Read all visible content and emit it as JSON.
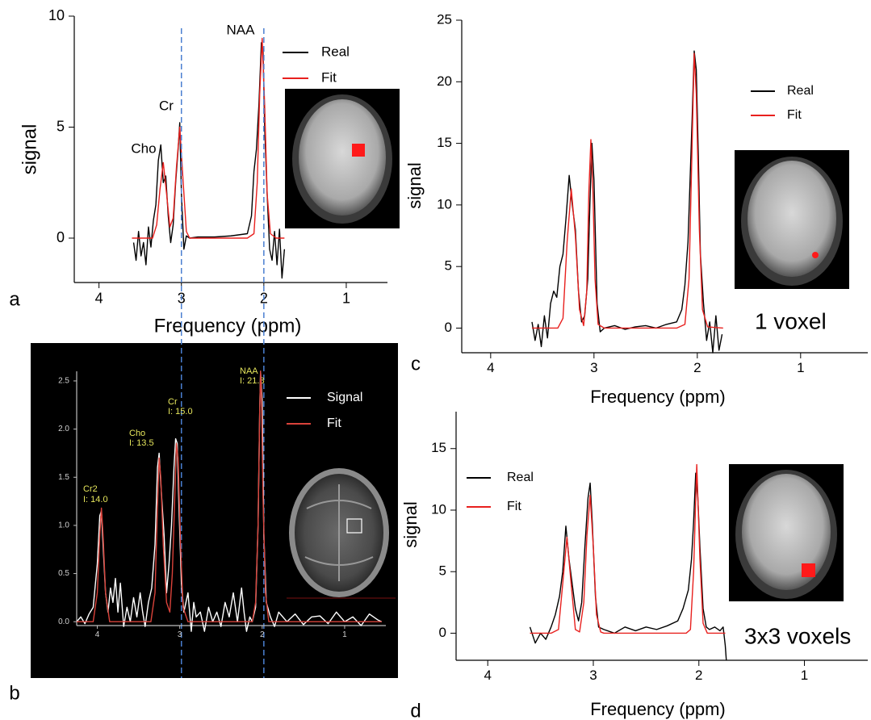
{
  "chart_data": [
    {
      "type": "line",
      "panel_label": "a",
      "xlabel": "Frequency (ppm)",
      "ylabel": "signal",
      "xlim": [
        4.3,
        0.5
      ],
      "ylim": [
        -2,
        10
      ],
      "xticks": [
        4,
        3,
        2,
        1
      ],
      "yticks": [
        0,
        5,
        10
      ],
      "vlines": [
        3,
        2
      ],
      "annotations": [
        "Cho",
        "Cr",
        "NAA"
      ],
      "series": [
        {
          "name": "Real",
          "color": "#000000",
          "x": [
            3.58,
            3.55,
            3.52,
            3.49,
            3.46,
            3.43,
            3.4,
            3.37,
            3.34,
            3.31,
            3.28,
            3.25,
            3.22,
            3.19,
            3.16,
            3.13,
            3.1,
            3.07,
            3.04,
            3.02,
            3.0,
            2.97,
            2.94,
            2.9,
            2.8,
            2.6,
            2.4,
            2.2,
            2.15,
            2.12,
            2.09,
            2.06,
            2.03,
            2.01,
            1.99,
            1.96,
            1.93,
            1.9,
            1.87,
            1.84,
            1.81,
            1.78,
            1.75
          ],
          "values": [
            -0.2,
            -1.0,
            0.3,
            -0.8,
            -0.2,
            -1.2,
            0.5,
            -0.4,
            0.8,
            1.5,
            3.5,
            4.2,
            2.5,
            2.8,
            1.0,
            -0.2,
            0.6,
            2.5,
            4.0,
            5.2,
            2.0,
            -0.5,
            0.1,
            0,
            0.05,
            0.05,
            0.1,
            0.2,
            1.0,
            3.0,
            4.0,
            6.0,
            8.8,
            8.5,
            5.0,
            2.0,
            -0.5,
            -1.0,
            0.3,
            -1.2,
            0.4,
            -1.8,
            -0.5
          ]
        },
        {
          "name": "Fit",
          "color": "#e8201e",
          "x": [
            3.6,
            3.35,
            3.3,
            3.26,
            3.22,
            3.18,
            3.14,
            3.1,
            3.06,
            3.02,
            2.98,
            2.94,
            2.9,
            2.2,
            2.12,
            2.08,
            2.05,
            2.02,
            1.99,
            1.96,
            1.92,
            1.85,
            1.75
          ],
          "values": [
            0,
            0,
            0.6,
            2.2,
            3.4,
            2.0,
            0.5,
            0.9,
            3.2,
            5.0,
            2.6,
            0.3,
            0,
            0,
            0.2,
            2.5,
            6.5,
            9.0,
            6.0,
            2.0,
            0.2,
            0,
            0
          ]
        }
      ]
    },
    {
      "type": "line",
      "panel_label": "b",
      "xlim": [
        4.25,
        0.5
      ],
      "ylim": [
        -0.04,
        2.6
      ],
      "xticks": [
        4,
        3,
        2,
        1
      ],
      "yticks": [
        {
          "value": 0,
          "label": "0.0"
        },
        {
          "value": 0.5,
          "label": "0.5"
        },
        {
          "value": 1,
          "label": "1.0"
        },
        {
          "value": 1.5,
          "label": "1.5"
        },
        {
          "value": 2,
          "label": "2.0"
        },
        {
          "value": 2.5,
          "label": "2.5"
        }
      ],
      "annotations": [
        "Cr2",
        "I: 14.0",
        "Cho",
        "I: 13.5",
        "Cr",
        "I: 15.0",
        "NAA",
        "I: 21.8"
      ],
      "series": [
        {
          "name": "Signal",
          "color": "#ffffff",
          "x": [
            4.25,
            4.2,
            4.15,
            4.1,
            4.05,
            4.0,
            3.97,
            3.95,
            3.93,
            3.9,
            3.87,
            3.84,
            3.81,
            3.78,
            3.75,
            3.72,
            3.68,
            3.64,
            3.6,
            3.56,
            3.52,
            3.48,
            3.45,
            3.42,
            3.38,
            3.34,
            3.3,
            3.27,
            3.25,
            3.22,
            3.19,
            3.16,
            3.13,
            3.1,
            3.07,
            3.05,
            3.03,
            3.01,
            2.98,
            2.95,
            2.9,
            2.86,
            2.83,
            2.8,
            2.75,
            2.7,
            2.65,
            2.6,
            2.55,
            2.5,
            2.45,
            2.4,
            2.35,
            2.3,
            2.25,
            2.22,
            2.19,
            2.15,
            2.12,
            2.08,
            2.05,
            2.03,
            2.02,
            2.0,
            1.98,
            1.95,
            1.9,
            1.85,
            1.8,
            1.7,
            1.6,
            1.5,
            1.4,
            1.3,
            1.2,
            1.1,
            1.0,
            0.9,
            0.8,
            0.7,
            0.6,
            0.55
          ],
          "values": [
            0.0,
            0.05,
            -0.02,
            0.08,
            0.15,
            0.6,
            1.1,
            1.15,
            0.8,
            0.3,
            0.1,
            0.35,
            0.2,
            0.45,
            0.1,
            0.4,
            -0.05,
            0.15,
            0.0,
            0.25,
            0.05,
            0.3,
            0.1,
            -0.05,
            0.2,
            0.35,
            0.8,
            1.6,
            1.75,
            1.3,
            0.9,
            0.3,
            0.6,
            1.0,
            1.6,
            1.9,
            1.85,
            1.2,
            0.4,
            0.1,
            0.3,
            -0.1,
            0.2,
            0.05,
            0.1,
            -0.1,
            0.15,
            0.0,
            0.1,
            -0.05,
            0.2,
            0.05,
            0.3,
            0.0,
            0.35,
            0.1,
            -0.1,
            0.05,
            0.0,
            0.15,
            1.0,
            2.2,
            2.6,
            2.3,
            0.9,
            0.2,
            0.05,
            -0.05,
            0.1,
            0.0,
            0.08,
            -0.03,
            0.05,
            0.06,
            -0.02,
            0.1,
            0.0,
            0.05,
            -0.04,
            0.08,
            0.02,
            0.0
          ]
        },
        {
          "name": "Fit",
          "color": "#d9423a",
          "x": [
            4.25,
            4.05,
            4.0,
            3.97,
            3.95,
            3.93,
            3.9,
            3.85,
            3.35,
            3.3,
            3.27,
            3.25,
            3.23,
            3.2,
            3.16,
            3.12,
            3.09,
            3.06,
            3.04,
            3.02,
            2.99,
            2.96,
            2.9,
            2.12,
            2.08,
            2.05,
            2.03,
            2.02,
            2.01,
            1.99,
            1.96,
            1.92,
            0.55
          ],
          "values": [
            0,
            0,
            0.3,
            0.9,
            1.18,
            0.9,
            0.3,
            0,
            0,
            0.3,
            1.2,
            1.7,
            1.5,
            0.8,
            0.2,
            0.1,
            0.5,
            1.3,
            1.85,
            1.7,
            0.8,
            0.15,
            0,
            0,
            0.2,
            1.0,
            2.2,
            2.6,
            2.4,
            1.3,
            0.3,
            0,
            0
          ]
        }
      ]
    },
    {
      "type": "line",
      "panel_label": "c",
      "xlabel": "Frequency (ppm)",
      "ylabel": "signal",
      "xlim": [
        4.28,
        0.35
      ],
      "ylim": [
        -2,
        25
      ],
      "xticks": [
        4,
        3,
        2,
        1
      ],
      "yticks": [
        0,
        5,
        10,
        15,
        20,
        25
      ],
      "annotations": [
        "1 voxel"
      ],
      "series": [
        {
          "name": "Real",
          "color": "#000000",
          "x": [
            3.6,
            3.57,
            3.54,
            3.51,
            3.48,
            3.45,
            3.42,
            3.39,
            3.36,
            3.33,
            3.3,
            3.27,
            3.24,
            3.21,
            3.18,
            3.15,
            3.12,
            3.09,
            3.06,
            3.04,
            3.02,
            3.0,
            2.97,
            2.94,
            2.9,
            2.8,
            2.7,
            2.6,
            2.5,
            2.4,
            2.3,
            2.2,
            2.15,
            2.12,
            2.09,
            2.07,
            2.05,
            2.03,
            2.01,
            1.99,
            1.97,
            1.94,
            1.91,
            1.88,
            1.85,
            1.82,
            1.79,
            1.76
          ],
          "values": [
            0.5,
            -1.0,
            0.3,
            -1.5,
            1.0,
            -0.8,
            2.0,
            3.0,
            2.5,
            5.0,
            6.0,
            9.0,
            12.4,
            10.0,
            8.0,
            3.0,
            0.5,
            1.0,
            4.0,
            10.0,
            15.0,
            12.0,
            2.0,
            -0.3,
            0,
            0.2,
            -0.1,
            0.1,
            0.2,
            0,
            0.3,
            0.5,
            1.5,
            3.5,
            7.0,
            12.0,
            17.0,
            22.5,
            21.0,
            14.0,
            6.0,
            2.0,
            -1.0,
            0.5,
            -2.0,
            1.0,
            -1.8,
            -0.5
          ]
        },
        {
          "name": "Fit",
          "color": "#e8201e",
          "x": [
            3.6,
            3.35,
            3.3,
            3.26,
            3.22,
            3.18,
            3.14,
            3.1,
            3.07,
            3.05,
            3.03,
            3.01,
            2.99,
            2.96,
            2.9,
            2.2,
            2.12,
            2.08,
            2.05,
            2.03,
            2.01,
            1.98,
            1.95,
            1.9,
            1.75
          ],
          "values": [
            0,
            0,
            0.8,
            7.0,
            11.3,
            7.5,
            1.5,
            0.2,
            3.0,
            11.0,
            15.3,
            11.0,
            4.0,
            0.3,
            0,
            0,
            0.3,
            4.0,
            15.0,
            22.3,
            19.0,
            8.0,
            1.5,
            0.1,
            0
          ]
        }
      ]
    },
    {
      "type": "line",
      "panel_label": "d",
      "xlabel": "Frequency (ppm)",
      "ylabel": "signal",
      "xlim": [
        4.3,
        0.4
      ],
      "ylim": [
        -2.2,
        18
      ],
      "xticks": [
        4,
        3,
        2,
        1
      ],
      "yticks": [
        0,
        5,
        10,
        15
      ],
      "annotations": [
        "3x3 voxels"
      ],
      "series": [
        {
          "name": "Real",
          "color": "#000000",
          "x": [
            3.6,
            3.55,
            3.5,
            3.45,
            3.4,
            3.36,
            3.32,
            3.29,
            3.26,
            3.23,
            3.2,
            3.17,
            3.14,
            3.11,
            3.08,
            3.05,
            3.03,
            3.01,
            2.98,
            2.95,
            2.9,
            2.8,
            2.7,
            2.6,
            2.5,
            2.4,
            2.3,
            2.2,
            2.15,
            2.1,
            2.07,
            2.05,
            2.03,
            2.01,
            1.99,
            1.96,
            1.93,
            1.9,
            1.85,
            1.8,
            1.77,
            1.75,
            1.74
          ],
          "values": [
            0.5,
            -0.8,
            0.0,
            -0.5,
            0.5,
            1.5,
            3.0,
            5.0,
            8.7,
            6.0,
            4.0,
            2.0,
            1.0,
            2.5,
            7.0,
            11.0,
            12.2,
            9.0,
            3.0,
            0.5,
            0.3,
            0,
            0.5,
            0.2,
            0.5,
            0.3,
            0.6,
            1.0,
            2.0,
            3.5,
            6.0,
            9.0,
            13.0,
            11.0,
            7.0,
            2.0,
            0.5,
            0.3,
            0.5,
            0.2,
            0.5,
            -1.0,
            -2.2
          ]
        },
        {
          "name": "Fit",
          "color": "#e8201e",
          "x": [
            3.6,
            3.4,
            3.33,
            3.29,
            3.25,
            3.21,
            3.17,
            3.13,
            3.09,
            3.06,
            3.03,
            3.0,
            2.97,
            2.93,
            2.9,
            2.12,
            2.08,
            2.05,
            2.02,
            1.99,
            1.96,
            1.92,
            1.75
          ],
          "values": [
            0,
            0,
            0.3,
            4.0,
            7.8,
            4.0,
            0.3,
            0.1,
            2.5,
            8.0,
            11.2,
            7.0,
            1.5,
            0.1,
            0,
            0,
            0.3,
            5.0,
            13.7,
            6.0,
            0.8,
            0,
            0
          ]
        }
      ]
    }
  ]
}
